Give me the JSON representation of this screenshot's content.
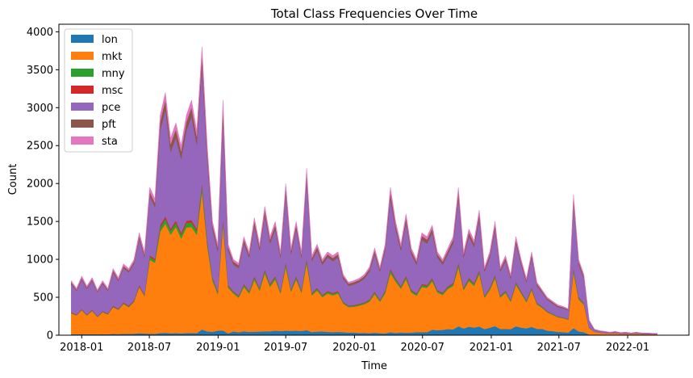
{
  "chart_data": {
    "type": "area",
    "stacked": true,
    "title": "Total Class Frequencies Over Time",
    "xlabel": "Time",
    "ylabel": "Count",
    "xlim": [
      "2017-11-01",
      "2022-06-14"
    ],
    "ylim": [
      0,
      4100
    ],
    "xticks": [
      "2018-01",
      "2018-07",
      "2019-01",
      "2019-07",
      "2020-01",
      "2020-07",
      "2021-01",
      "2021-07",
      "2022-01"
    ],
    "yticks": [
      0,
      500,
      1000,
      1500,
      2000,
      2500,
      3000,
      3500,
      4000
    ],
    "grid": false,
    "legend_position": "upper-left",
    "x": [
      "2017-12-04",
      "2017-12-18",
      "2018-01-01",
      "2018-01-15",
      "2018-01-29",
      "2018-02-12",
      "2018-02-26",
      "2018-03-12",
      "2018-03-26",
      "2018-04-09",
      "2018-04-23",
      "2018-05-07",
      "2018-05-21",
      "2018-06-04",
      "2018-06-18",
      "2018-07-02",
      "2018-07-16",
      "2018-07-30",
      "2018-08-13",
      "2018-08-27",
      "2018-09-10",
      "2018-09-24",
      "2018-10-08",
      "2018-10-22",
      "2018-11-05",
      "2018-11-19",
      "2018-12-03",
      "2018-12-17",
      "2018-12-31",
      "2019-01-14",
      "2019-01-28",
      "2019-02-11",
      "2019-02-25",
      "2019-03-11",
      "2019-03-25",
      "2019-04-08",
      "2019-04-22",
      "2019-05-06",
      "2019-05-20",
      "2019-06-03",
      "2019-06-17",
      "2019-07-01",
      "2019-07-15",
      "2019-07-29",
      "2019-08-12",
      "2019-08-26",
      "2019-09-09",
      "2019-09-23",
      "2019-10-07",
      "2019-10-21",
      "2019-11-04",
      "2019-11-18",
      "2019-12-02",
      "2019-12-16",
      "2019-12-30",
      "2020-01-13",
      "2020-01-27",
      "2020-02-10",
      "2020-02-24",
      "2020-03-09",
      "2020-03-23",
      "2020-04-06",
      "2020-04-20",
      "2020-05-04",
      "2020-05-18",
      "2020-06-01",
      "2020-06-15",
      "2020-06-29",
      "2020-07-13",
      "2020-07-27",
      "2020-08-10",
      "2020-08-24",
      "2020-09-07",
      "2020-09-21",
      "2020-10-05",
      "2020-10-19",
      "2020-11-02",
      "2020-11-16",
      "2020-11-30",
      "2020-12-14",
      "2020-12-28",
      "2021-01-11",
      "2021-01-25",
      "2021-02-08",
      "2021-02-22",
      "2021-03-08",
      "2021-03-22",
      "2021-04-05",
      "2021-04-19",
      "2021-05-03",
      "2021-05-17",
      "2021-05-31",
      "2021-06-14",
      "2021-06-28",
      "2021-07-12",
      "2021-07-26",
      "2021-08-09",
      "2021-08-23",
      "2021-09-06",
      "2021-09-20",
      "2021-10-04",
      "2021-10-18",
      "2021-11-01",
      "2021-11-15",
      "2021-11-29",
      "2021-12-13",
      "2021-12-27",
      "2022-01-10",
      "2022-01-24",
      "2022-02-07",
      "2022-02-21",
      "2022-03-07",
      "2022-03-21"
    ],
    "totals": [
      720,
      620,
      780,
      650,
      760,
      600,
      720,
      620,
      880,
      760,
      940,
      880,
      1000,
      1350,
      1100,
      1950,
      1800,
      2900,
      3200,
      2600,
      2800,
      2500,
      2900,
      3100,
      2700,
      3800,
      2500,
      1500,
      1200,
      3100,
      1200,
      1000,
      950,
      1300,
      1100,
      1550,
      1200,
      1700,
      1300,
      1500,
      1100,
      2000,
      1150,
      1500,
      1100,
      2200,
      1050,
      1200,
      1000,
      1100,
      1050,
      1100,
      800,
      700,
      720,
      750,
      800,
      900,
      1150,
      900,
      1200,
      1950,
      1500,
      1200,
      1600,
      1150,
      1000,
      1350,
      1300,
      1450,
      1100,
      1000,
      1150,
      1300,
      1950,
      1100,
      1400,
      1250,
      1650,
      900,
      1100,
      1500,
      900,
      1050,
      800,
      1300,
      1000,
      750,
      1100,
      700,
      600,
      500,
      450,
      400,
      380,
      350,
      1850,
      1000,
      800,
      200,
      80,
      60,
      50,
      40,
      50,
      35,
      40,
      30,
      40,
      30,
      30,
      25,
      25
    ],
    "series": [
      {
        "name": "lon",
        "color": "#1f77b4",
        "frac": [
          0.02,
          0.02,
          0.02,
          0.02,
          0.02,
          0.02,
          0.02,
          0.02,
          0.02,
          0.02,
          0.02,
          0.02,
          0.02,
          0.02,
          0.02,
          0.01,
          0.01,
          0.01,
          0.01,
          0.01,
          0.01,
          0.01,
          0.01,
          0.01,
          0.01,
          0.02,
          0.02,
          0.03,
          0.05,
          0.02,
          0.02,
          0.05,
          0.04,
          0.04,
          0.04,
          0.03,
          0.04,
          0.03,
          0.04,
          0.04,
          0.05,
          0.03,
          0.05,
          0.04,
          0.05,
          0.03,
          0.04,
          0.04,
          0.05,
          0.04,
          0.04,
          0.04,
          0.05,
          0.05,
          0.05,
          0.04,
          0.04,
          0.03,
          0.03,
          0.03,
          0.02,
          0.02,
          0.02,
          0.03,
          0.02,
          0.03,
          0.04,
          0.03,
          0.03,
          0.05,
          0.06,
          0.07,
          0.07,
          0.06,
          0.06,
          0.08,
          0.08,
          0.08,
          0.07,
          0.09,
          0.09,
          0.08,
          0.09,
          0.08,
          0.1,
          0.09,
          0.1,
          0.12,
          0.1,
          0.12,
          0.14,
          0.12,
          0.12,
          0.11,
          0.11,
          0.1,
          0.05,
          0.05,
          0.05,
          0.05,
          0.05,
          0.05,
          0.05,
          0.05,
          0.05,
          0.05,
          0.05,
          0.05,
          0.05,
          0.05,
          0.05,
          0.05,
          0.05
        ]
      },
      {
        "name": "mkt",
        "color": "#ff7f0e",
        "frac": [
          0.38,
          0.4,
          0.4,
          0.38,
          0.4,
          0.38,
          0.4,
          0.42,
          0.4,
          0.42,
          0.42,
          0.4,
          0.42,
          0.45,
          0.45,
          0.5,
          0.52,
          0.46,
          0.45,
          0.5,
          0.5,
          0.5,
          0.48,
          0.45,
          0.48,
          0.48,
          0.45,
          0.45,
          0.4,
          0.45,
          0.5,
          0.5,
          0.48,
          0.45,
          0.46,
          0.44,
          0.45,
          0.45,
          0.45,
          0.45,
          0.45,
          0.42,
          0.45,
          0.45,
          0.46,
          0.4,
          0.46,
          0.45,
          0.45,
          0.46,
          0.46,
          0.46,
          0.47,
          0.48,
          0.47,
          0.48,
          0.47,
          0.46,
          0.44,
          0.46,
          0.44,
          0.4,
          0.45,
          0.48,
          0.44,
          0.46,
          0.48,
          0.44,
          0.45,
          0.44,
          0.45,
          0.46,
          0.46,
          0.44,
          0.4,
          0.46,
          0.43,
          0.44,
          0.42,
          0.46,
          0.45,
          0.42,
          0.46,
          0.45,
          0.45,
          0.42,
          0.45,
          0.46,
          0.44,
          0.46,
          0.46,
          0.48,
          0.48,
          0.48,
          0.48,
          0.48,
          0.4,
          0.42,
          0.45,
          0.42,
          0.5,
          0.5,
          0.5,
          0.5,
          0.5,
          0.5,
          0.5,
          0.5,
          0.5,
          0.5,
          0.5,
          0.5,
          0.5
        ]
      },
      {
        "name": "mny",
        "color": "#2ca02c",
        "frac": [
          0.01,
          0.01,
          0.01,
          0.01,
          0.01,
          0.01,
          0.01,
          0.01,
          0.01,
          0.01,
          0.01,
          0.01,
          0.01,
          0.01,
          0.01,
          0.02,
          0.02,
          0.02,
          0.02,
          0.02,
          0.02,
          0.02,
          0.02,
          0.02,
          0.02,
          0.02,
          0.02,
          0.02,
          0.02,
          0.02,
          0.02,
          0.02,
          0.02,
          0.02,
          0.02,
          0.02,
          0.02,
          0.02,
          0.02,
          0.02,
          0.02,
          0.02,
          0.02,
          0.02,
          0.02,
          0.02,
          0.02,
          0.02,
          0.02,
          0.02,
          0.02,
          0.02,
          0.02,
          0.02,
          0.02,
          0.02,
          0.02,
          0.02,
          0.02,
          0.02,
          0.02,
          0.02,
          0.02,
          0.02,
          0.02,
          0.02,
          0.02,
          0.02,
          0.02,
          0.02,
          0.02,
          0.02,
          0.02,
          0.02,
          0.02,
          0.02,
          0.02,
          0.02,
          0.02,
          0.02,
          0.02,
          0.02,
          0.02,
          0.02,
          0.02,
          0.02,
          0.02,
          0.02,
          0.02,
          0.02,
          0.02,
          0.02,
          0.02,
          0.02,
          0.02,
          0.02,
          0.02,
          0.02,
          0.02,
          0.02,
          0.02,
          0.02,
          0.02,
          0.02,
          0.02,
          0.02,
          0.02,
          0.02,
          0.02,
          0.02,
          0.02,
          0.02,
          0.02
        ]
      },
      {
        "name": "msc",
        "color": "#d62728",
        "frac": [
          0.01,
          0.01,
          0.01,
          0.01,
          0.01,
          0.01,
          0.01,
          0.01,
          0.01,
          0.01,
          0.01,
          0.01,
          0.01,
          0.01,
          0.01,
          0.01,
          0.01,
          0.01,
          0.01,
          0.01,
          0.01,
          0.01,
          0.01,
          0.01,
          0.01,
          0.01,
          0.01,
          0.01,
          0.01,
          0.01,
          0.01,
          0.01,
          0.01,
          0.01,
          0.01,
          0.01,
          0.01,
          0.01,
          0.01,
          0.01,
          0.01,
          0.01,
          0.01,
          0.01,
          0.01,
          0.01,
          0.01,
          0.01,
          0.01,
          0.01,
          0.01,
          0.01,
          0.01,
          0.01,
          0.01,
          0.01,
          0.01,
          0.01,
          0.01,
          0.01,
          0.01,
          0.01,
          0.01,
          0.01,
          0.01,
          0.01,
          0.01,
          0.01,
          0.01,
          0.01,
          0.01,
          0.01,
          0.01,
          0.01,
          0.01,
          0.01,
          0.01,
          0.01,
          0.01,
          0.01,
          0.01,
          0.01,
          0.01,
          0.01,
          0.01,
          0.01,
          0.01,
          0.01,
          0.01,
          0.01,
          0.01,
          0.01,
          0.01,
          0.01,
          0.01,
          0.01,
          0.01,
          0.01,
          0.01,
          0.01,
          0.01,
          0.01,
          0.01,
          0.01,
          0.01,
          0.01,
          0.01,
          0.01,
          0.01,
          0.01,
          0.01,
          0.01,
          0.01
        ]
      },
      {
        "name": "pce",
        "color": "#9467bd",
        "frac": [
          0.51,
          0.5,
          0.5,
          0.52,
          0.5,
          0.52,
          0.5,
          0.48,
          0.5,
          0.48,
          0.48,
          0.5,
          0.48,
          0.45,
          0.45,
          0.4,
          0.38,
          0.43,
          0.44,
          0.39,
          0.39,
          0.39,
          0.41,
          0.44,
          0.41,
          0.4,
          0.43,
          0.42,
          0.44,
          0.42,
          0.38,
          0.35,
          0.38,
          0.41,
          0.4,
          0.43,
          0.41,
          0.42,
          0.41,
          0.41,
          0.4,
          0.45,
          0.4,
          0.41,
          0.39,
          0.47,
          0.4,
          0.41,
          0.4,
          0.4,
          0.4,
          0.4,
          0.38,
          0.37,
          0.38,
          0.38,
          0.39,
          0.41,
          0.43,
          0.41,
          0.44,
          0.48,
          0.43,
          0.39,
          0.44,
          0.41,
          0.38,
          0.43,
          0.42,
          0.41,
          0.39,
          0.37,
          0.37,
          0.4,
          0.44,
          0.36,
          0.39,
          0.38,
          0.41,
          0.35,
          0.36,
          0.4,
          0.35,
          0.37,
          0.35,
          0.39,
          0.35,
          0.32,
          0.36,
          0.32,
          0.3,
          0.3,
          0.3,
          0.31,
          0.31,
          0.32,
          0.45,
          0.43,
          0.4,
          0.43,
          0.35,
          0.35,
          0.35,
          0.35,
          0.35,
          0.35,
          0.35,
          0.35,
          0.35,
          0.35,
          0.35,
          0.35,
          0.35
        ]
      },
      {
        "name": "pft",
        "color": "#8c564b",
        "frac": [
          0.04,
          0.03,
          0.03,
          0.03,
          0.03,
          0.03,
          0.03,
          0.03,
          0.03,
          0.03,
          0.03,
          0.03,
          0.03,
          0.03,
          0.03,
          0.03,
          0.03,
          0.04,
          0.04,
          0.04,
          0.04,
          0.04,
          0.04,
          0.04,
          0.04,
          0.04,
          0.04,
          0.04,
          0.05,
          0.05,
          0.04,
          0.04,
          0.04,
          0.04,
          0.04,
          0.04,
          0.04,
          0.04,
          0.04,
          0.04,
          0.04,
          0.04,
          0.04,
          0.04,
          0.04,
          0.04,
          0.04,
          0.04,
          0.04,
          0.04,
          0.04,
          0.04,
          0.04,
          0.04,
          0.04,
          0.04,
          0.04,
          0.04,
          0.04,
          0.04,
          0.04,
          0.04,
          0.04,
          0.04,
          0.04,
          0.04,
          0.04,
          0.04,
          0.04,
          0.04,
          0.04,
          0.04,
          0.04,
          0.04,
          0.04,
          0.04,
          0.04,
          0.04,
          0.04,
          0.04,
          0.04,
          0.04,
          0.04,
          0.04,
          0.04,
          0.04,
          0.04,
          0.04,
          0.04,
          0.04,
          0.04,
          0.04,
          0.04,
          0.04,
          0.04,
          0.04,
          0.04,
          0.04,
          0.04,
          0.04,
          0.04,
          0.04,
          0.04,
          0.04,
          0.04,
          0.04,
          0.04,
          0.04,
          0.04,
          0.04,
          0.04,
          0.04,
          0.04
        ]
      },
      {
        "name": "sta",
        "color": "#e377c2",
        "frac": [
          0.03,
          0.03,
          0.03,
          0.03,
          0.03,
          0.03,
          0.03,
          0.03,
          0.03,
          0.03,
          0.03,
          0.03,
          0.03,
          0.03,
          0.03,
          0.03,
          0.03,
          0.03,
          0.03,
          0.03,
          0.03,
          0.03,
          0.03,
          0.03,
          0.03,
          0.03,
          0.03,
          0.03,
          0.03,
          0.03,
          0.03,
          0.03,
          0.03,
          0.03,
          0.03,
          0.03,
          0.03,
          0.03,
          0.03,
          0.03,
          0.03,
          0.03,
          0.03,
          0.03,
          0.03,
          0.03,
          0.03,
          0.03,
          0.03,
          0.03,
          0.03,
          0.03,
          0.03,
          0.03,
          0.03,
          0.03,
          0.03,
          0.03,
          0.03,
          0.03,
          0.03,
          0.03,
          0.03,
          0.03,
          0.03,
          0.03,
          0.03,
          0.03,
          0.03,
          0.03,
          0.03,
          0.03,
          0.03,
          0.03,
          0.03,
          0.03,
          0.03,
          0.03,
          0.03,
          0.03,
          0.03,
          0.03,
          0.03,
          0.03,
          0.03,
          0.03,
          0.03,
          0.03,
          0.03,
          0.03,
          0.03,
          0.03,
          0.03,
          0.03,
          0.03,
          0.03,
          0.03,
          0.03,
          0.03,
          0.03,
          0.03,
          0.03,
          0.03,
          0.03,
          0.03,
          0.03,
          0.03,
          0.03,
          0.03,
          0.03,
          0.03,
          0.03,
          0.03
        ]
      }
    ]
  }
}
